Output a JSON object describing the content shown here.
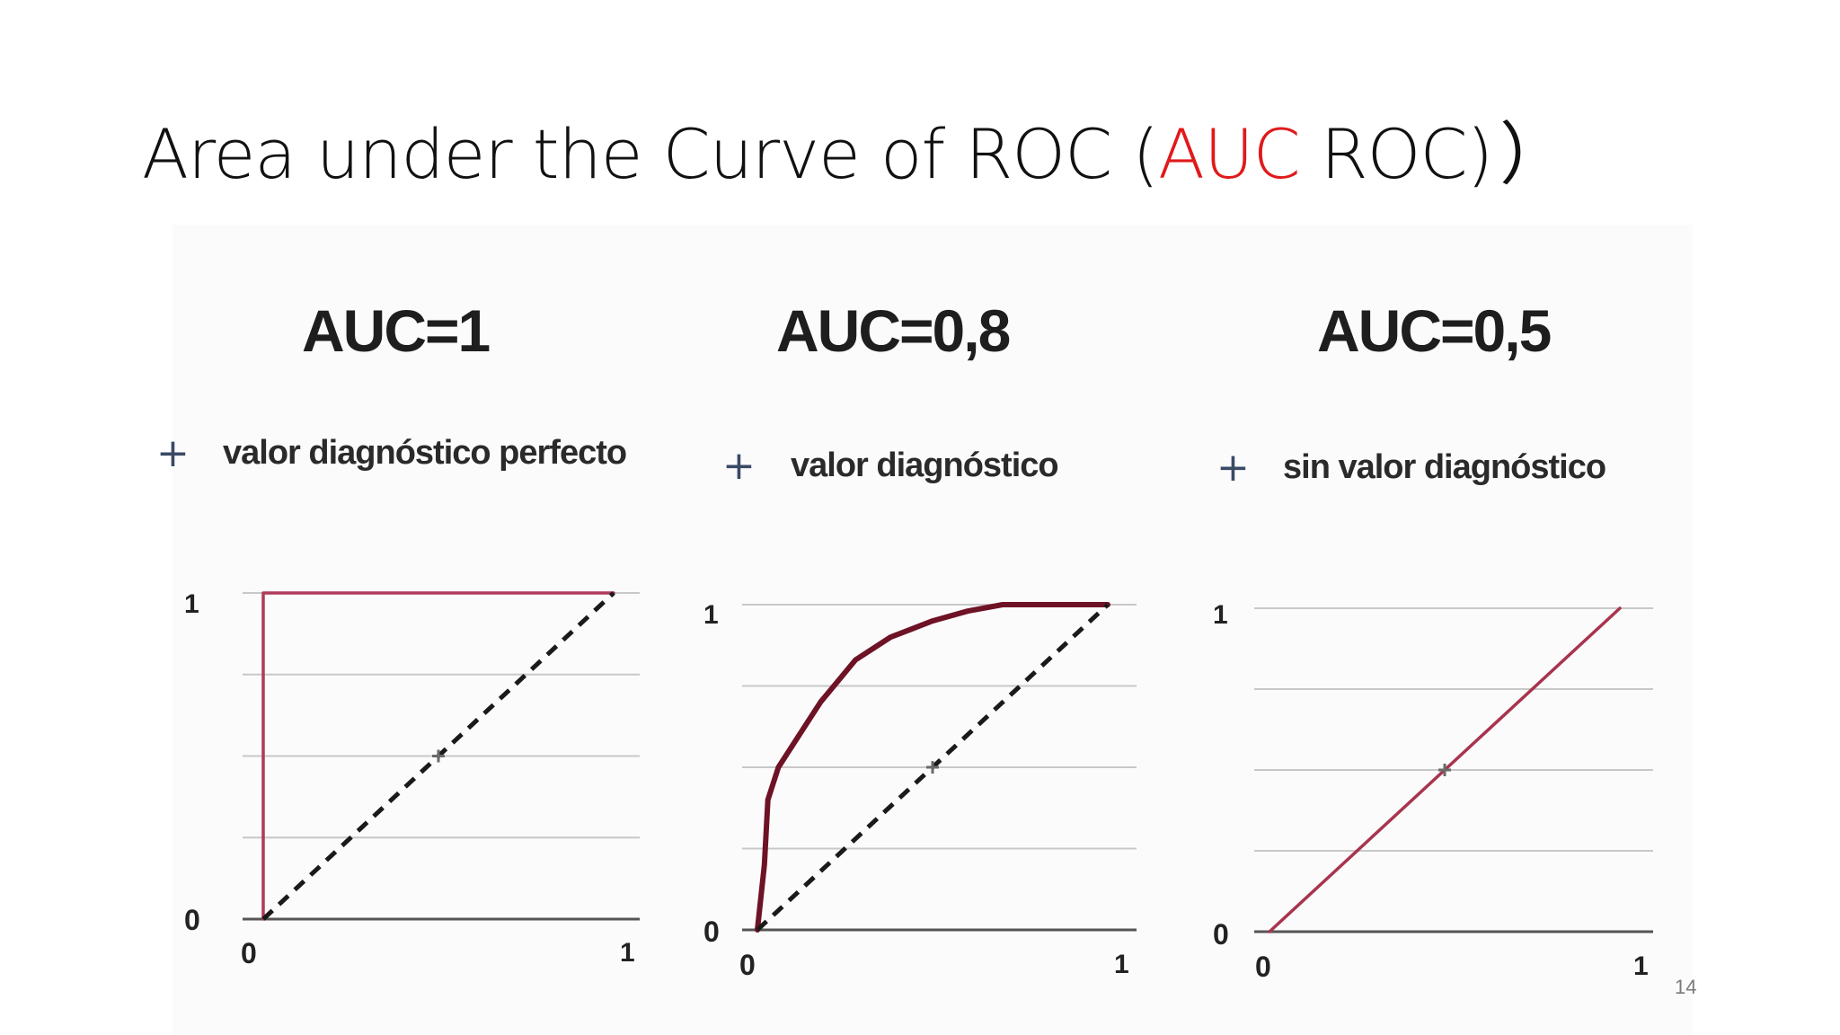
{
  "title": {
    "prefix": "Area under the Curve of ROC (",
    "accent": "AUC",
    "suffix": " ROC)",
    "trailing_bracket": "）"
  },
  "colors": {
    "accent": "#e0191b",
    "curve_panel1": "#b03a5b",
    "curve_panel2": "#6e1226",
    "curve_panel3": "#a8344f",
    "diagonal": "#1a1a1a",
    "grid": "#c8c8c8",
    "plus": "#3a4a66"
  },
  "panels": [
    {
      "heading": "AUC=1",
      "plus": "+",
      "caption": "valor diagnóstico perfecto"
    },
    {
      "heading": "AUC=0,8",
      "plus": "+",
      "caption": "valor diagnóstico"
    },
    {
      "heading": "AUC=0,5",
      "plus": "+",
      "caption": "sin valor diagnóstico"
    }
  ],
  "chart_data": [
    {
      "type": "line",
      "title": "AUC=1",
      "xlim": [
        0,
        1
      ],
      "ylim": [
        0,
        1
      ],
      "xticks": [
        "0",
        "1"
      ],
      "yticks": [
        "0",
        "1"
      ],
      "grid": true,
      "series": [
        {
          "x": [
            0,
            0,
            1
          ],
          "y": [
            0,
            1,
            1
          ]
        },
        {
          "x": [
            0,
            1
          ],
          "y": [
            0,
            1
          ],
          "style": "dashed"
        }
      ],
      "marker_point": [
        0.5,
        0.5
      ]
    },
    {
      "type": "line",
      "title": "AUC=0,8",
      "xlim": [
        0,
        1
      ],
      "ylim": [
        0,
        1
      ],
      "xticks": [
        "0",
        "1"
      ],
      "yticks": [
        "0",
        "1"
      ],
      "grid": true,
      "series": [
        {
          "x": [
            0,
            0.02,
            0.03,
            0.06,
            0.12,
            0.18,
            0.28,
            0.38,
            0.5,
            0.6,
            0.7,
            0.85,
            1.0
          ],
          "y": [
            0,
            0.2,
            0.4,
            0.5,
            0.6,
            0.7,
            0.83,
            0.9,
            0.95,
            0.98,
            1.0,
            1.0,
            1.0
          ]
        },
        {
          "x": [
            0,
            1
          ],
          "y": [
            0,
            1
          ],
          "style": "dashed"
        }
      ],
      "marker_point": [
        0.5,
        0.5
      ]
    },
    {
      "type": "line",
      "title": "AUC=0,5",
      "xlim": [
        0,
        1
      ],
      "ylim": [
        0,
        1
      ],
      "xticks": [
        "0",
        "1"
      ],
      "yticks": [
        "0",
        "1"
      ],
      "grid": true,
      "series": [
        {
          "x": [
            0,
            1
          ],
          "y": [
            0,
            1
          ]
        }
      ],
      "marker_point": [
        0.5,
        0.5
      ]
    }
  ],
  "page_number": "14"
}
